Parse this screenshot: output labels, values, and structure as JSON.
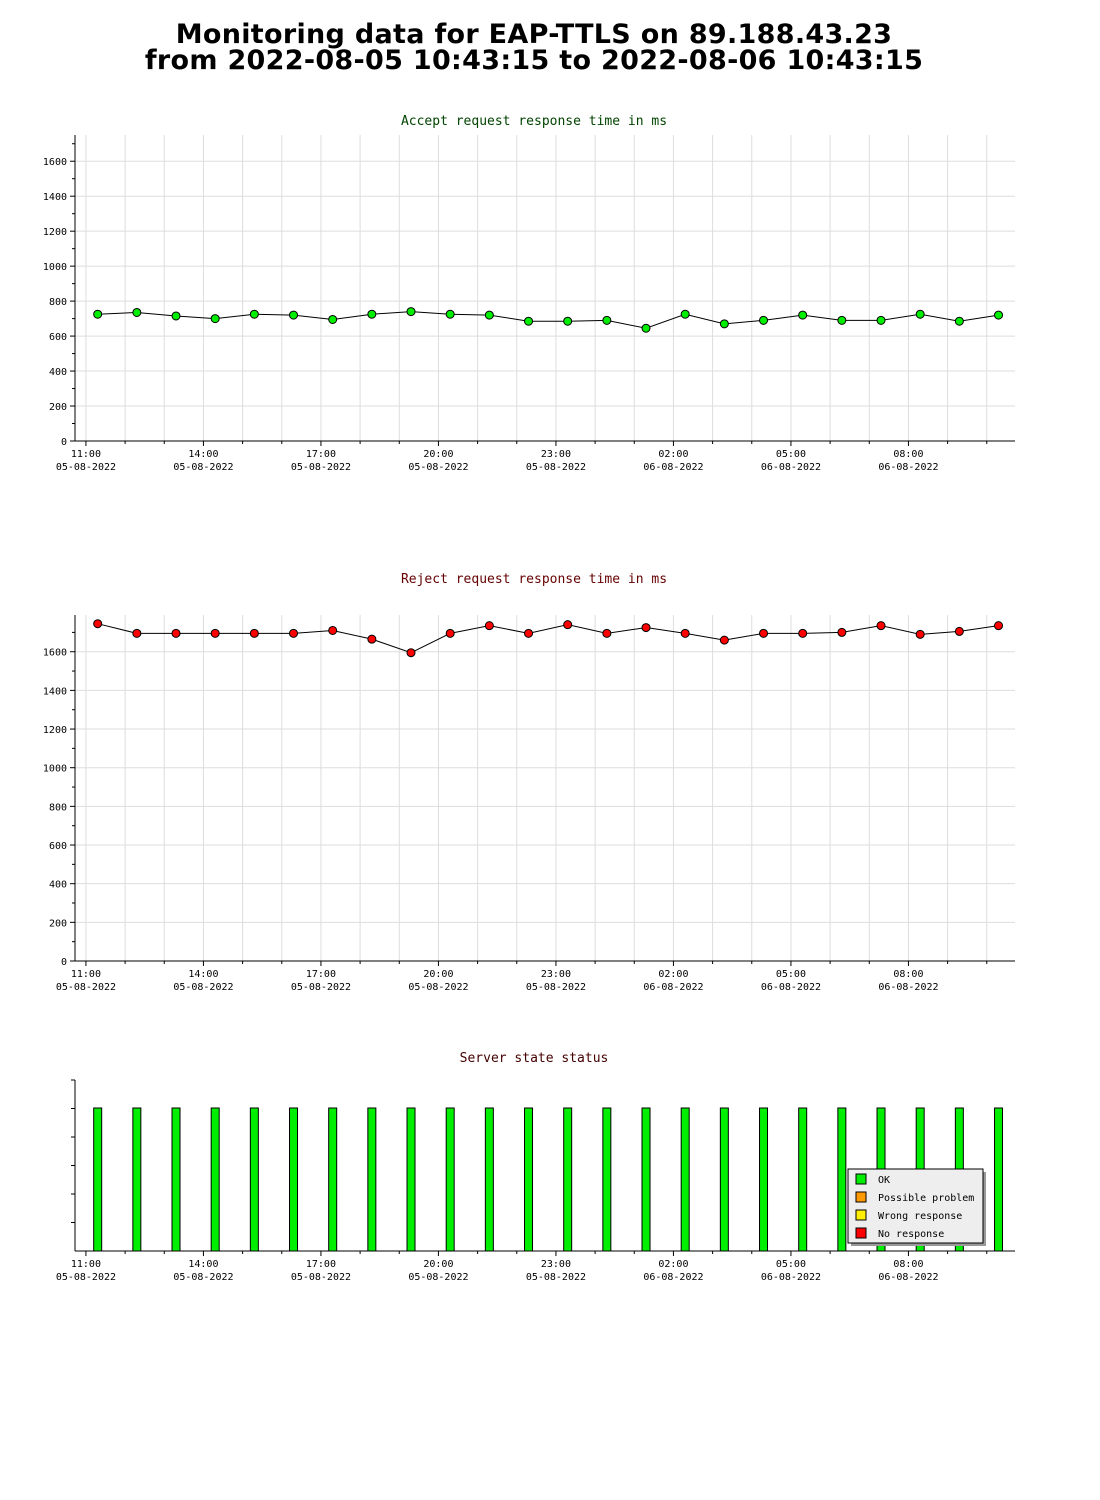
{
  "page": {
    "title_line1": "Monitoring data for EAP-TTLS on 89.188.43.23",
    "title_line2": "from 2022-08-05 10:43:15 to 2022-08-06 10:43:15"
  },
  "colors": {
    "accept_marker": "#00ee00",
    "reject_marker": "#ff0000",
    "accept_title": "#004400",
    "reject_title": "#660000",
    "status_title": "#440000",
    "ok": "#00ee00",
    "possible_problem": "#ff9900",
    "wrong_response": "#ffee00",
    "no_response": "#ff0000",
    "grid": "#dddddd"
  },
  "x_axis": {
    "tick_labels": [
      {
        "time": "11:00",
        "date": "05-08-2022"
      },
      {
        "time": "14:00",
        "date": "05-08-2022"
      },
      {
        "time": "17:00",
        "date": "05-08-2022"
      },
      {
        "time": "20:00",
        "date": "05-08-2022"
      },
      {
        "time": "23:00",
        "date": "05-08-2022"
      },
      {
        "time": "02:00",
        "date": "06-08-2022"
      },
      {
        "time": "05:00",
        "date": "06-08-2022"
      },
      {
        "time": "08:00",
        "date": "06-08-2022"
      }
    ]
  },
  "chart_data": [
    {
      "type": "line",
      "title": "Accept request response time in ms",
      "x": [
        "2022-08-05 11:18",
        "2022-08-05 12:18",
        "2022-08-05 13:18",
        "2022-08-05 14:18",
        "2022-08-05 15:18",
        "2022-08-05 16:18",
        "2022-08-05 17:18",
        "2022-08-05 18:18",
        "2022-08-05 19:18",
        "2022-08-05 20:18",
        "2022-08-05 21:18",
        "2022-08-05 22:18",
        "2022-08-05 23:18",
        "2022-08-06 00:18",
        "2022-08-06 01:18",
        "2022-08-06 02:18",
        "2022-08-06 03:18",
        "2022-08-06 04:18",
        "2022-08-06 05:18",
        "2022-08-06 06:18",
        "2022-08-06 07:18",
        "2022-08-06 08:18",
        "2022-08-06 09:18",
        "2022-08-06 10:18"
      ],
      "values": [
        725,
        735,
        715,
        700,
        725,
        720,
        695,
        725,
        740,
        725,
        720,
        685,
        685,
        690,
        645,
        725,
        670,
        690,
        720,
        690,
        690,
        725,
        685,
        720
      ],
      "ylim": [
        0,
        1750
      ],
      "yticks": [
        "0",
        "200",
        "400",
        "600",
        "800",
        "1000",
        "1200",
        "1400",
        "1600"
      ],
      "grid": true
    },
    {
      "type": "line",
      "title": "Reject request response time in ms",
      "x": [
        "2022-08-05 11:18",
        "2022-08-05 12:18",
        "2022-08-05 13:18",
        "2022-08-05 14:18",
        "2022-08-05 15:18",
        "2022-08-05 16:18",
        "2022-08-05 17:18",
        "2022-08-05 18:18",
        "2022-08-05 19:18",
        "2022-08-05 20:18",
        "2022-08-05 21:18",
        "2022-08-05 22:18",
        "2022-08-05 23:18",
        "2022-08-06 00:18",
        "2022-08-06 01:18",
        "2022-08-06 02:18",
        "2022-08-06 03:18",
        "2022-08-06 04:18",
        "2022-08-06 05:18",
        "2022-08-06 06:18",
        "2022-08-06 07:18",
        "2022-08-06 08:18",
        "2022-08-06 09:18",
        "2022-08-06 10:18"
      ],
      "values": [
        1745,
        1695,
        1695,
        1695,
        1695,
        1695,
        1710,
        1665,
        1595,
        1695,
        1735,
        1695,
        1740,
        1695,
        1725,
        1695,
        1660,
        1695,
        1695,
        1700,
        1735,
        1690,
        1705,
        1735
      ],
      "ylim": [
        0,
        1790
      ],
      "yticks": [
        "0",
        "200",
        "400",
        "600",
        "800",
        "1000",
        "1200",
        "1400",
        "1600"
      ],
      "grid": true
    },
    {
      "type": "bar",
      "title": "Server state status",
      "x": [
        "2022-08-05 11:18",
        "2022-08-05 12:18",
        "2022-08-05 13:18",
        "2022-08-05 14:18",
        "2022-08-05 15:18",
        "2022-08-05 16:18",
        "2022-08-05 17:18",
        "2022-08-05 18:18",
        "2022-08-05 19:18",
        "2022-08-05 20:18",
        "2022-08-05 21:18",
        "2022-08-05 22:18",
        "2022-08-05 23:18",
        "2022-08-06 00:18",
        "2022-08-06 01:18",
        "2022-08-06 02:18",
        "2022-08-06 03:18",
        "2022-08-06 04:18",
        "2022-08-06 05:18",
        "2022-08-06 06:18",
        "2022-08-06 07:18",
        "2022-08-06 08:18",
        "2022-08-06 09:18",
        "2022-08-06 10:18"
      ],
      "states": [
        "OK",
        "OK",
        "OK",
        "OK",
        "OK",
        "OK",
        "OK",
        "OK",
        "OK",
        "OK",
        "OK",
        "OK",
        "OK",
        "OK",
        "OK",
        "OK",
        "OK",
        "OK",
        "OK",
        "OK",
        "OK",
        "OK",
        "OK",
        "OK"
      ],
      "legend": [
        "OK",
        "Possible problem",
        "Wrong response",
        "No response"
      ],
      "legend_position": "bottom-right"
    }
  ]
}
